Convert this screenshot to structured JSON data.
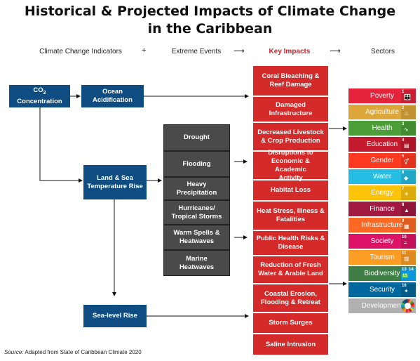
{
  "title_line1": "Historical & Projected Impacts of Climate Change",
  "title_line2": "in the Caribbean",
  "headers": {
    "indicators": "Climate Change Indicators",
    "plus": "+",
    "events": "Extreme Events",
    "impacts": "Key Impacts",
    "sectors": "Sectors",
    "arrow1": "⟶",
    "arrow2": "⟶"
  },
  "indicators": {
    "co2_line1": "CO",
    "co2_sub": "2",
    "co2_line2": "Concentration",
    "ocean": "Ocean Acidification",
    "land_sea": "Land & Sea Temperature Rise",
    "sea_level": "Sea-level Rise"
  },
  "events": [
    "Drought",
    "Flooding",
    "Heavy Precipitation",
    "Hurricanes/ Tropical Storms",
    "Warm Spells & Heatwaves",
    "Marine Heatwaves"
  ],
  "impacts": [
    "Coral Bleaching & Reef Damage",
    "Damaged Infrastructure",
    "Decreased Livestock & Crop Production",
    "Disruptions to Economic & Academic Activity",
    "Habitat Loss",
    "Heat Stress, Illness & Fatalities",
    "Public Health Risks & Disease",
    "Reduction of Fresh Water & Arable Land",
    "Coastal Erosion, Flooding & Retreat",
    "Storm Surges",
    "Saline Intrusion"
  ],
  "sectors": [
    {
      "label": "Poverty",
      "color": "#e5243b",
      "sdg": "1",
      "icon": "family-icon",
      "glyph": "👪"
    },
    {
      "label": "Agriculture",
      "color": "#dda63a",
      "sdg": "2",
      "icon": "bowl-icon",
      "glyph": "♨"
    },
    {
      "label": "Health",
      "color": "#4c9f38",
      "sdg": "3",
      "icon": "heartbeat-icon",
      "glyph": "∿"
    },
    {
      "label": "Education",
      "color": "#c5192d",
      "sdg": "4",
      "icon": "book-icon",
      "glyph": "▤"
    },
    {
      "label": "Gender",
      "color": "#ff3a21",
      "sdg": "5",
      "icon": "gender-icon",
      "glyph": "⚥"
    },
    {
      "label": "Water",
      "color": "#26bde2",
      "sdg": "6",
      "icon": "water-drop-icon",
      "glyph": "◆"
    },
    {
      "label": "Energy",
      "color": "#fcc30b",
      "sdg": "7",
      "icon": "sun-icon",
      "glyph": "☀"
    },
    {
      "label": "Finance",
      "color": "#a21942",
      "sdg": "8",
      "icon": "growth-chart-icon",
      "glyph": "▲"
    },
    {
      "label": "Infrastructure",
      "color": "#fd6925",
      "sdg": "9",
      "icon": "cubes-icon",
      "glyph": "▦"
    },
    {
      "label": "Society",
      "color": "#dd1367",
      "sdg": "10",
      "icon": "equal-icon",
      "glyph": "="
    },
    {
      "label": "Tourism",
      "color": "#fd9d24",
      "sdg": "11",
      "icon": "buildings-icon",
      "glyph": "▥"
    },
    {
      "label": "Biodiversity",
      "color": "#3f7e44",
      "sdg": "13",
      "icon": "eye-globe-icon",
      "glyph": "◉"
    },
    {
      "label": "Security",
      "color": "#00689d",
      "sdg": "16",
      "icon": "dove-icon",
      "glyph": "✦"
    },
    {
      "label": "Development",
      "color": "#b0b0b0",
      "sdg": "",
      "icon": "sdg-wheel-icon",
      "glyph": ""
    }
  ],
  "sdg_extra": {
    "n14": "14",
    "n15": "15"
  },
  "source_label": "Source:",
  "source_text": " Adapted from State of Caribbean Climate 2020"
}
